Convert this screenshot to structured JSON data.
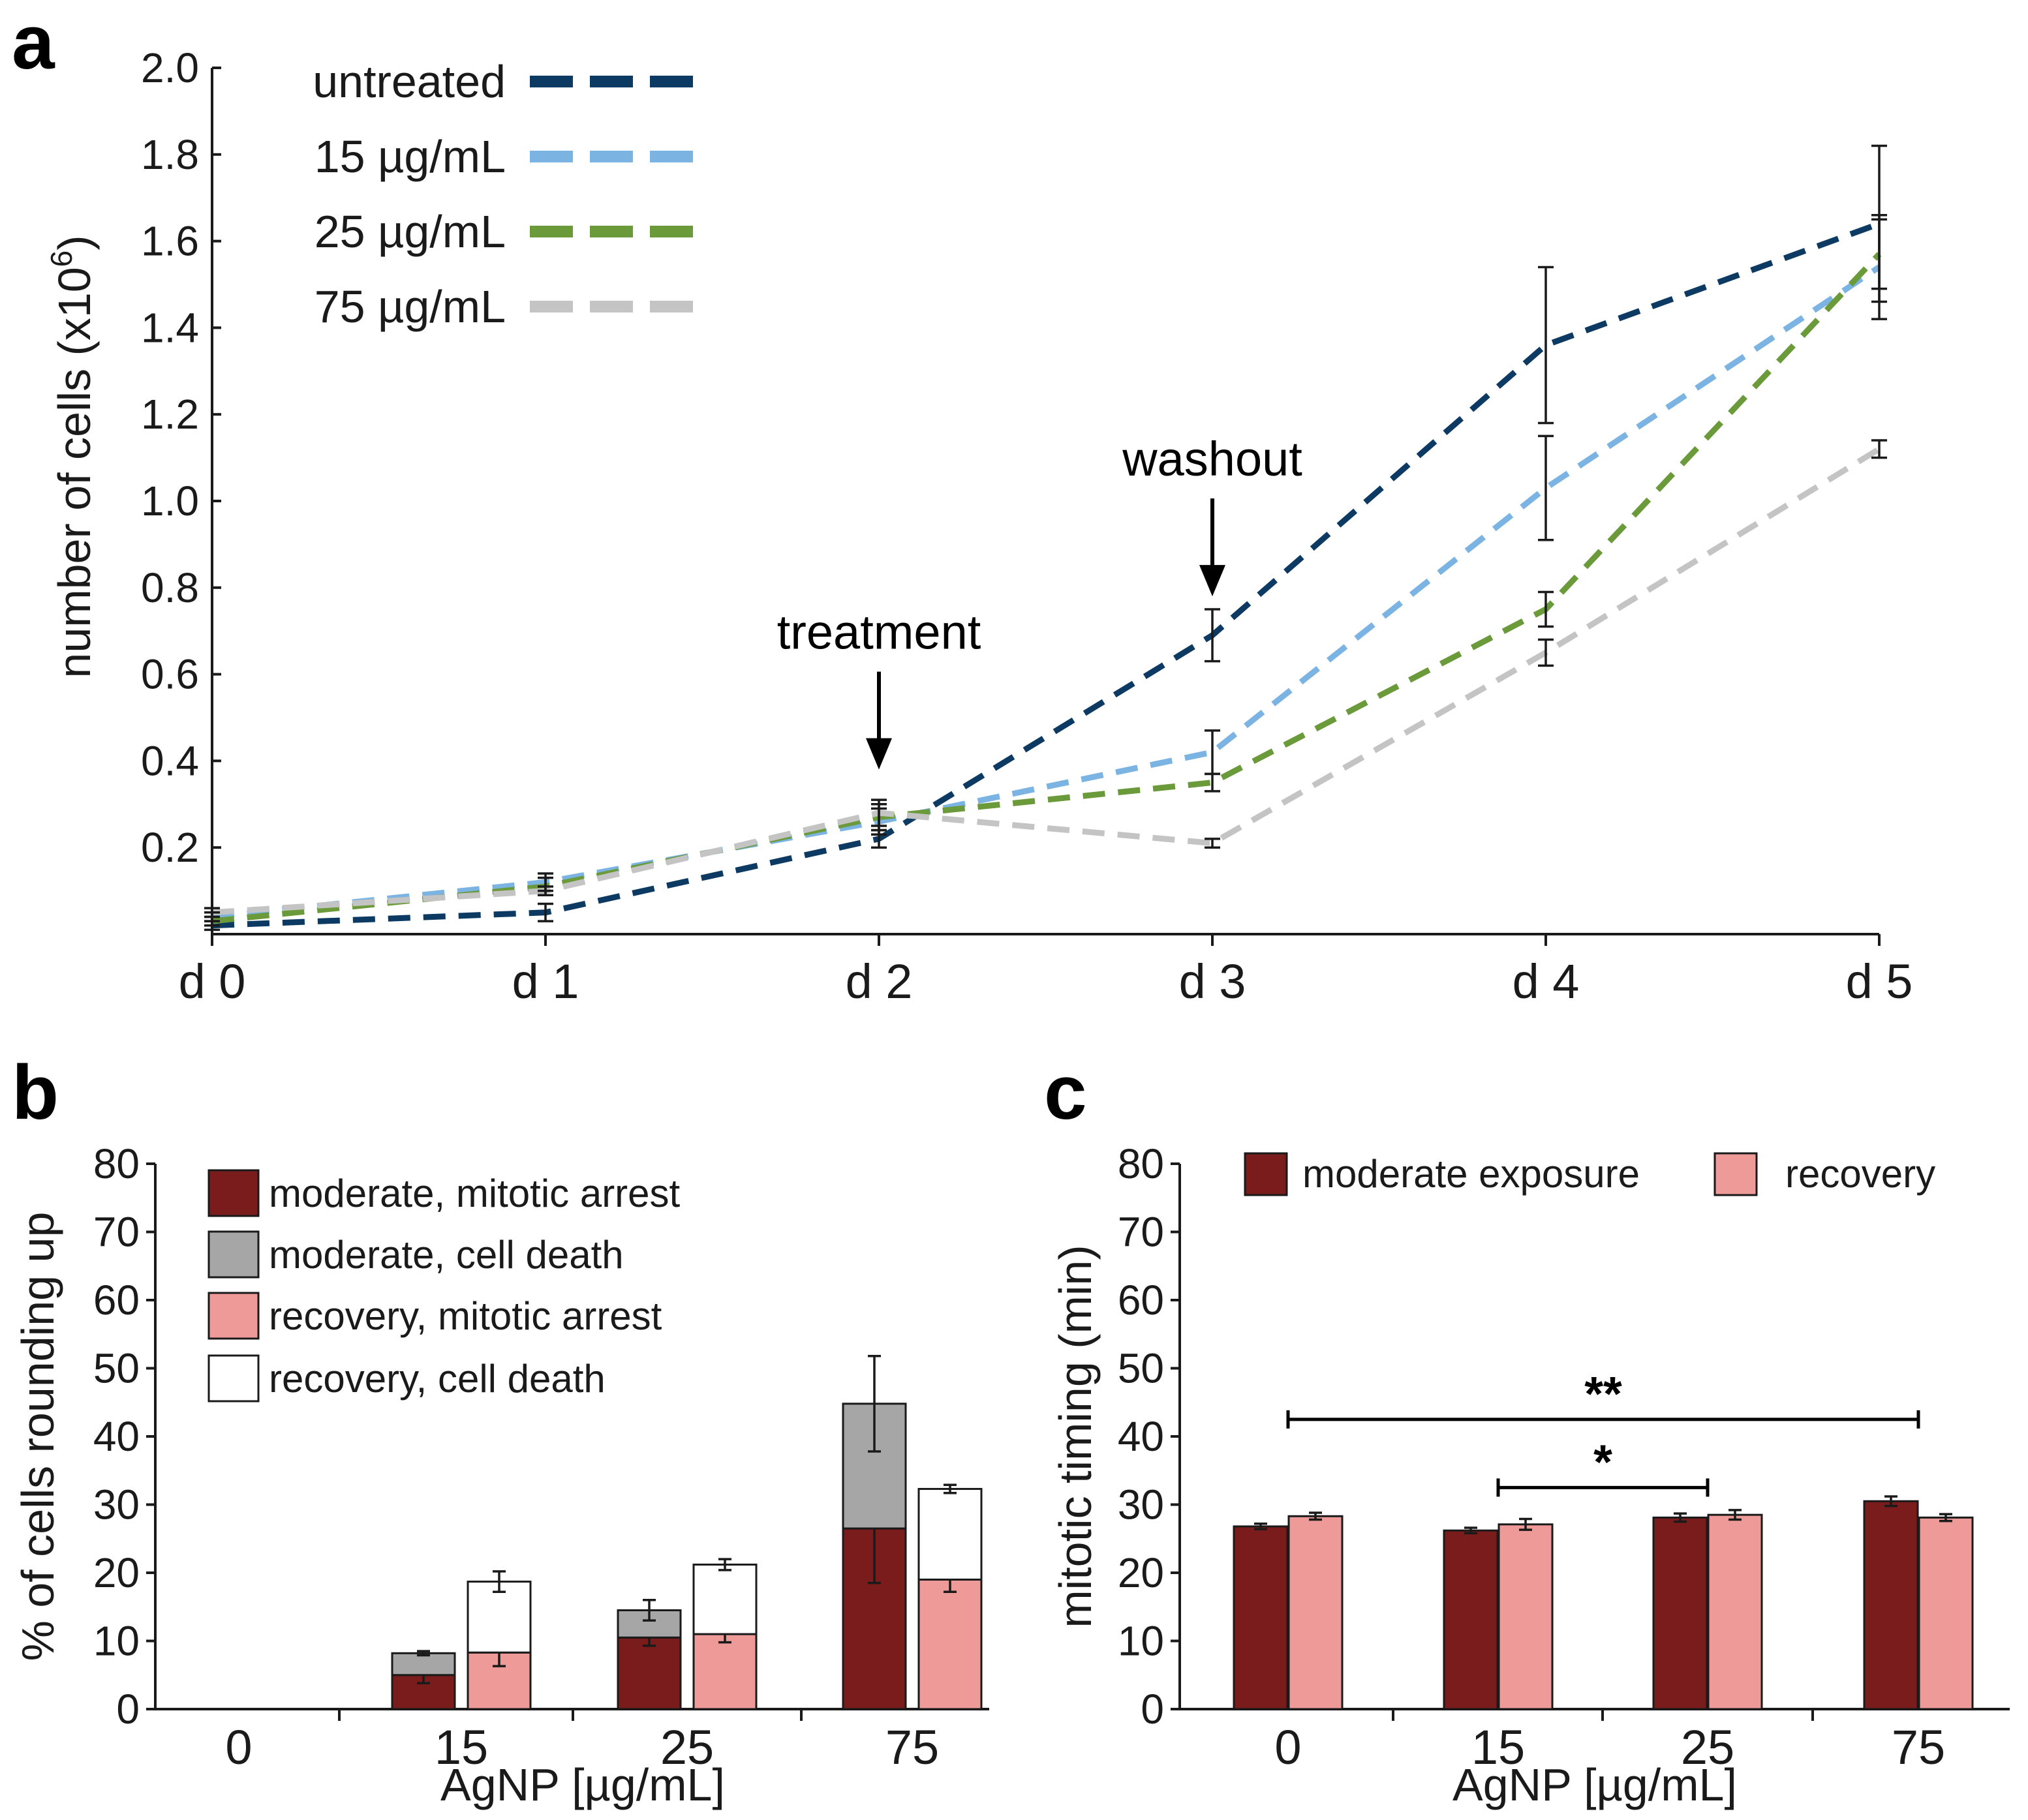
{
  "panels": {
    "a": "a",
    "b": "b",
    "c": "c"
  },
  "chart_data": [
    {
      "id": "a",
      "type": "line",
      "title": "",
      "xlabel": "",
      "ylabel": "number of cells (x10^6)",
      "ylabel_main": "number of cells (x10",
      "ylabel_sup": "6",
      "ylabel_end": ")",
      "categories": [
        "d 0",
        "d 1",
        "d 2",
        "d 3",
        "d 4",
        "d 5"
      ],
      "ylim": [
        0,
        2.0
      ],
      "yticks": [
        "0.2",
        "0.4",
        "0.6",
        "0.8",
        "1.0",
        "1.2",
        "1.4",
        "1.6",
        "1.8",
        "2.0"
      ],
      "ytick_values": [
        0.2,
        0.4,
        0.6,
        0.8,
        1.0,
        1.2,
        1.4,
        1.6,
        1.8,
        2.0
      ],
      "series": [
        {
          "name": "untreated",
          "color": "#0d3a63",
          "values": [
            0.02,
            0.05,
            0.22,
            0.69,
            1.36,
            1.64
          ],
          "err": [
            0.01,
            0.02,
            0.02,
            0.06,
            0.18,
            0.18
          ]
        },
        {
          "name": "15 µg/mL",
          "color": "#7bb4e3",
          "values": [
            0.04,
            0.12,
            0.26,
            0.42,
            1.03,
            1.54
          ],
          "err": [
            0.01,
            0.02,
            0.03,
            0.05,
            0.12,
            0.12
          ]
        },
        {
          "name": "25 µg/mL",
          "color": "#6b9a3a",
          "values": [
            0.03,
            0.11,
            0.27,
            0.35,
            0.75,
            1.57
          ],
          "err": [
            0.01,
            0.02,
            0.03,
            0.02,
            0.04,
            0.08
          ]
        },
        {
          "name": "75 µg/mL",
          "color": "#c4c4c4",
          "values": [
            0.05,
            0.1,
            0.28,
            0.21,
            0.65,
            1.12
          ],
          "err": [
            0.01,
            0.01,
            0.03,
            0.01,
            0.03,
            0.02
          ]
        }
      ],
      "annotations": [
        {
          "text": "treatment",
          "x": "d 2",
          "arrow_to": 0.38
        },
        {
          "text": "washout",
          "x": "d 3",
          "arrow_to": 0.78
        }
      ]
    },
    {
      "id": "b",
      "type": "bar",
      "stacked": true,
      "xlabel": "AgNP [µg/mL]",
      "ylabel": "% of cells rounding up",
      "categories": [
        "0",
        "15",
        "25",
        "75"
      ],
      "ylim": [
        0,
        80
      ],
      "yticks": [
        "0",
        "10",
        "20",
        "30",
        "40",
        "50",
        "60",
        "70",
        "80"
      ],
      "ytick_values": [
        0,
        10,
        20,
        30,
        40,
        50,
        60,
        70,
        80
      ],
      "series": [
        {
          "name": "moderate, mitotic arrest",
          "color": "#7b1c1c",
          "group": "moderate",
          "values": [
            0,
            5.0,
            10.5,
            26.5
          ],
          "err": [
            0,
            1.2,
            1.2,
            8.0
          ]
        },
        {
          "name": "moderate, cell death",
          "color": "#a6a6a6",
          "group": "moderate",
          "values": [
            0,
            3.2,
            4.0,
            18.3
          ],
          "err": [
            0,
            0.3,
            1.5,
            7.0
          ]
        },
        {
          "name": "recovery, mitotic arrest",
          "color": "#ee9a98",
          "group": "recovery",
          "values": [
            0,
            8.3,
            11.0,
            19.0
          ],
          "err": [
            0,
            2.0,
            1.2,
            1.8
          ]
        },
        {
          "name": "recovery, cell death",
          "color": "#ffffff",
          "group": "recovery",
          "values": [
            0,
            10.4,
            10.2,
            13.3
          ],
          "err": [
            0,
            1.5,
            0.8,
            0.6
          ]
        }
      ]
    },
    {
      "id": "c",
      "type": "bar",
      "xlabel": "AgNP [µg/mL]",
      "ylabel": "mitotic timing (min)",
      "categories": [
        "0",
        "15",
        "25",
        "75"
      ],
      "ylim": [
        0,
        80
      ],
      "yticks": [
        "0",
        "10",
        "20",
        "30",
        "40",
        "50",
        "60",
        "70",
        "80"
      ],
      "ytick_values": [
        0,
        10,
        20,
        30,
        40,
        50,
        60,
        70,
        80
      ],
      "series": [
        {
          "name": "moderate exposure",
          "color": "#7b1c1c",
          "values": [
            26.8,
            26.2,
            28.1,
            30.5
          ],
          "err": [
            0.4,
            0.4,
            0.6,
            0.7
          ]
        },
        {
          "name": "recovery",
          "color": "#ee9a98",
          "values": [
            28.3,
            27.1,
            28.5,
            28.1
          ],
          "err": [
            0.5,
            0.8,
            0.7,
            0.5
          ]
        }
      ],
      "significance": [
        {
          "label": "**",
          "from": "0",
          "to": "75",
          "y": 42.5
        },
        {
          "label": "*",
          "from": "15",
          "to": "25",
          "y": 32.5
        }
      ]
    }
  ]
}
